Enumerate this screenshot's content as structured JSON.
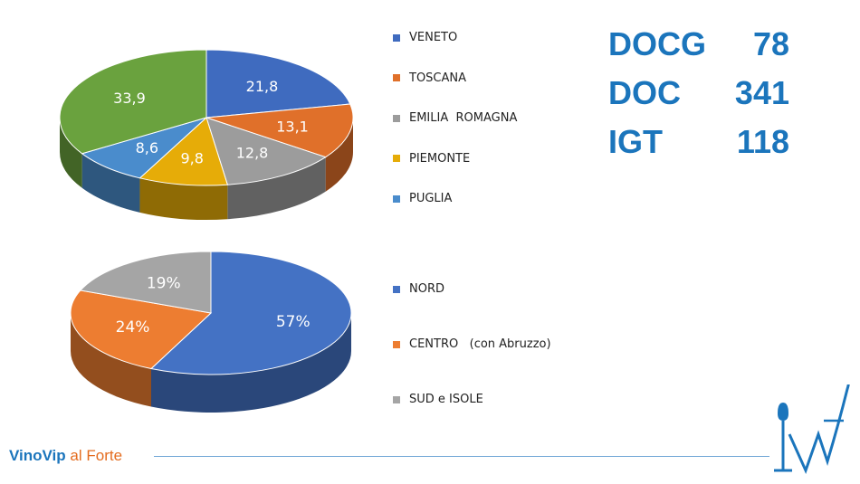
{
  "chart_data": [
    {
      "type": "pie",
      "title": "",
      "slices": [
        {
          "label": "VENETO",
          "value": 21.8,
          "display": "21,8",
          "color": "#3f6bbf",
          "legend": true
        },
        {
          "label": "TOSCANA",
          "value": 13.1,
          "display": "13,1",
          "color": "#e0702a",
          "legend": true
        },
        {
          "label": "EMILIA  ROMAGNA",
          "value": 12.8,
          "display": "12,8",
          "color": "#9c9c9c",
          "legend": true
        },
        {
          "label": "PIEMONTE",
          "value": 9.8,
          "display": "9,8",
          "color": "#e6ac08",
          "legend": true
        },
        {
          "label": "PUGLIA",
          "value": 8.6,
          "display": "8,6",
          "color": "#4a8ccc",
          "legend": true
        },
        {
          "label": "",
          "value": 33.9,
          "display": "33,9",
          "color": "#6aa23e",
          "legend": false
        }
      ],
      "legend_placement": "right"
    },
    {
      "type": "pie",
      "title": "",
      "slices": [
        {
          "label": "NORD",
          "value": 57,
          "display": "57%",
          "color": "#4472c4",
          "legend": true
        },
        {
          "label": "CENTRO   (con Abruzzo)",
          "value": 24,
          "display": "24%",
          "color": "#ed7d31",
          "legend": true
        },
        {
          "label": "SUD e ISOLE",
          "value": 19,
          "display": "19%",
          "color": "#a5a5a5",
          "legend": true
        }
      ],
      "legend_placement": "right"
    }
  ],
  "stats": [
    {
      "label": "DOCG",
      "value": "78"
    },
    {
      "label": "DOC",
      "value": "341"
    },
    {
      "label": "IGT",
      "value": "118"
    }
  ],
  "footer": {
    "brand": "VinoVip",
    "suffix": " al Forte"
  },
  "logo_text": "vf"
}
